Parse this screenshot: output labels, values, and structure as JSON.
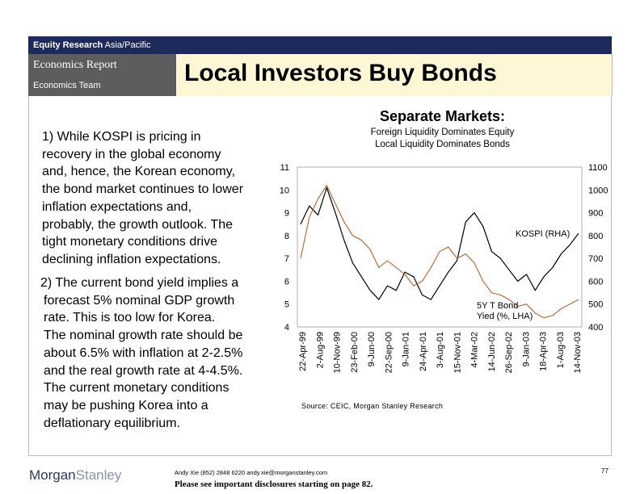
{
  "header": {
    "division_bold": "Equity Research",
    "region": "Asia/Pacific",
    "report_type": "Economics Report",
    "team": "Economics Team",
    "title": "Local Investors Buy Bonds"
  },
  "body": {
    "para1_lines": [
      "1) While KOSPI is pricing in",
      "recovery in the global economy",
      "and, hence, the Korean economy,",
      "the bond market continues to lower",
      "inflation expectations and,",
      "probably, the growth outlook.  The",
      "tight monetary conditions drive",
      "declining inflation expectations."
    ],
    "para2_lines": [
      "2) The current bond yield implies a",
      "forecast 5% nominal GDP growth",
      "rate.  This is too low for Korea.",
      "The nominal growth rate should be",
      "about 6.5% with inflation at 2-2.5%",
      "and the real growth rate at 4-4.5%.",
      "The current monetary conditions",
      "may be pushing Korea into a",
      "deflationary equilibrium."
    ]
  },
  "chart_data": {
    "type": "line",
    "title": "Separate Markets:",
    "subtitle_lines": [
      "Foreign Liquidity Dominates Equity",
      "Local Liquidity Dominates Bonds"
    ],
    "x_ticks": [
      "22-Apr-99",
      "2-Aug-99",
      "10-Nov-99",
      "23-Feb-00",
      "9-Jun-00",
      "22-Sep-00",
      "9-Jan-01",
      "24-Apr-01",
      "3-Aug-01",
      "15-Nov-01",
      "4-Mar-02",
      "14-Jun-02",
      "26-Sep-02",
      "9-Jan-03",
      "18-Apr-03",
      "1-Aug-03",
      "14-Nov-03"
    ],
    "left_axis": {
      "ylim": [
        4,
        11
      ],
      "ticks": [
        "4",
        "5",
        "6",
        "7",
        "8",
        "9",
        "10",
        "11"
      ]
    },
    "right_axis": {
      "ylim": [
        400,
        1100
      ],
      "ticks": [
        "400",
        "500",
        "600",
        "700",
        "800",
        "900",
        "1000",
        "1100"
      ]
    },
    "series": [
      {
        "name": "KOSPI (RHA)",
        "axis": "right",
        "color": "#000000",
        "values": [
          850,
          930,
          890,
          1010,
          900,
          780,
          680,
          620,
          560,
          520,
          580,
          560,
          640,
          620,
          540,
          520,
          580,
          640,
          690,
          860,
          900,
          840,
          730,
          700,
          650,
          600,
          630,
          560,
          620,
          660,
          720,
          760,
          810
        ]
      },
      {
        "name": "5Y T Bond Yied (%, LHA)",
        "axis": "left",
        "color": "#b5602a",
        "values": [
          7.0,
          8.8,
          9.6,
          10.2,
          9.4,
          8.6,
          8.0,
          7.8,
          7.4,
          6.6,
          6.9,
          6.6,
          6.3,
          5.8,
          6.0,
          6.6,
          7.3,
          7.5,
          7.0,
          7.2,
          6.8,
          6.0,
          5.5,
          5.4,
          5.2,
          4.9,
          5.0,
          4.6,
          4.4,
          4.5,
          4.8,
          5.0,
          5.2
        ]
      }
    ],
    "source": "Source: CEIC, Morgan Stanley Research"
  },
  "footer": {
    "logo_part1": "Morgan",
    "logo_part2": "Stanley",
    "contact": "Andy Xie (852) 2848 6220  andy.xie@morganstanley.com",
    "disclosure": "Please see important disclosures starting on page 82.",
    "page_number": "77"
  },
  "colors": {
    "topbar": "#1f2a5c",
    "left_band": "#5d5d5d",
    "title_band": "#fdf7d6"
  }
}
